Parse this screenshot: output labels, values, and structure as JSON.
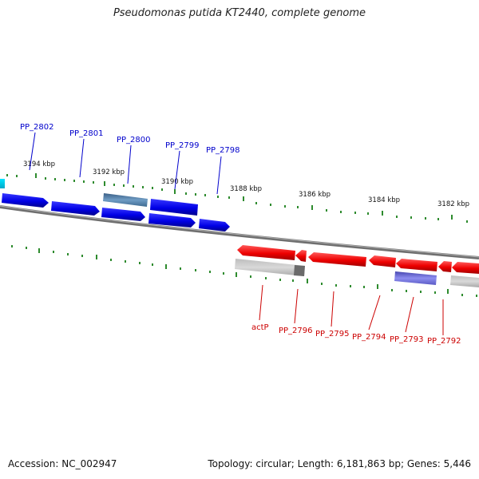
{
  "title": "Pseudomonas putida KT2440, complete genome",
  "footer": {
    "accession": "Accession: NC_002947",
    "topology": "Topology: circular; Length: 6,181,863 bp; Genes: 5,446"
  },
  "colors": {
    "backbone": "#808080",
    "tick": "#2e8b2e",
    "forward_label": "#0000cc",
    "reverse_label": "#cc0000"
  },
  "tick_labels": [
    "3194 kbp",
    "3192 kbp",
    "3190 kbp",
    "3188 kbp",
    "3186 kbp",
    "3184 kbp",
    "3182 kbp"
  ],
  "genes_forward": [
    {
      "label": "PP_2802"
    },
    {
      "label": "PP_2801"
    },
    {
      "label": "PP_2800"
    },
    {
      "label": "PP_2799"
    },
    {
      "label": "PP_2798"
    }
  ],
  "genes_reverse": [
    {
      "label": "actP"
    },
    {
      "label": "PP_2796"
    },
    {
      "label": "PP_2795"
    },
    {
      "label": "PP_2794"
    },
    {
      "label": "PP_2793"
    },
    {
      "label": "PP_2792"
    }
  ]
}
